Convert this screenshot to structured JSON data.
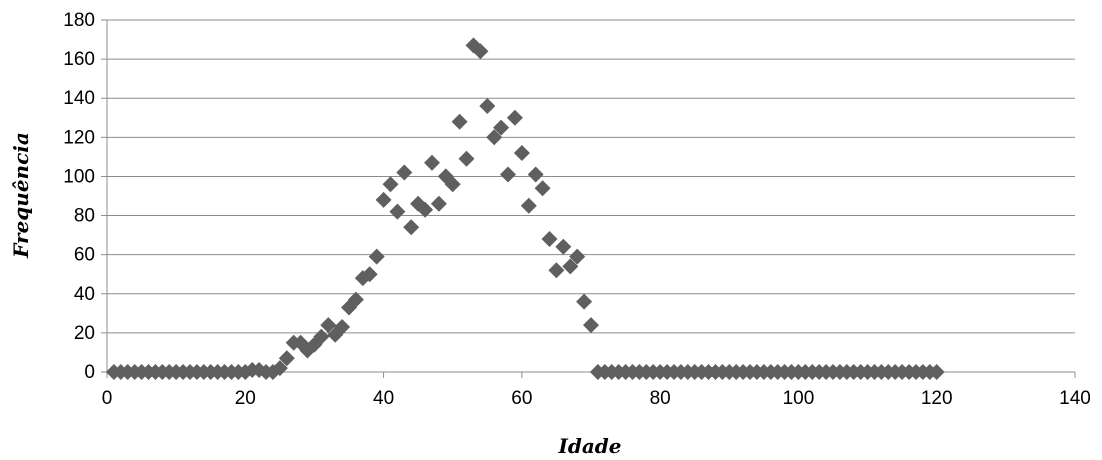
{
  "chart_data": {
    "type": "scatter",
    "title": "",
    "xlabel": "Idade",
    "ylabel": "Frequência",
    "xlim": [
      0,
      140
    ],
    "ylim": [
      0,
      180
    ],
    "xticks": [
      0,
      20,
      40,
      60,
      80,
      100,
      120,
      140
    ],
    "yticks": [
      0,
      20,
      40,
      60,
      80,
      100,
      120,
      140,
      160,
      180
    ],
    "grid": "horizontal",
    "legend": "none",
    "marker_color": "#5f5f5f",
    "series": [
      {
        "marker": "diamond",
        "x": [
          1,
          2,
          3,
          4,
          5,
          6,
          7,
          8,
          9,
          10,
          11,
          12,
          13,
          14,
          15,
          16,
          17,
          18,
          19,
          20,
          21,
          22,
          23,
          24,
          25,
          26,
          27,
          28,
          29,
          30,
          31,
          32,
          33,
          34,
          35,
          36,
          37,
          38,
          39,
          40,
          41,
          42,
          43,
          44,
          45,
          46,
          47,
          48,
          49,
          50,
          51,
          52,
          53,
          54,
          55,
          56,
          57,
          58,
          59,
          60,
          61,
          62,
          63,
          64,
          65,
          66,
          67,
          68,
          69,
          70,
          71,
          72,
          73,
          74,
          75,
          76,
          77,
          78,
          79,
          80,
          81,
          82,
          83,
          84,
          85,
          86,
          87,
          88,
          89,
          90,
          91,
          92,
          93,
          94,
          95,
          96,
          97,
          98,
          99,
          100,
          101,
          102,
          103,
          104,
          105,
          106,
          107,
          108,
          109,
          110,
          111,
          112,
          113,
          114,
          115,
          116,
          117,
          118,
          119,
          120
        ],
        "y": [
          0,
          0,
          0,
          0,
          0,
          0,
          0,
          0,
          0,
          0,
          0,
          0,
          0,
          0,
          0,
          0,
          0,
          0,
          0,
          0,
          1,
          1,
          0,
          0,
          2,
          7,
          15,
          15,
          11,
          14,
          18,
          24,
          19,
          23,
          33,
          37,
          48,
          50,
          59,
          88,
          96,
          82,
          102,
          74,
          86,
          83,
          107,
          86,
          100,
          96,
          128,
          109,
          167,
          164,
          136,
          120,
          125,
          101,
          130,
          112,
          85,
          101,
          94,
          68,
          52,
          64,
          54,
          59,
          36,
          24,
          0,
          0,
          0,
          0,
          0,
          0,
          0,
          0,
          0,
          0,
          0,
          0,
          0,
          0,
          0,
          0,
          0,
          0,
          0,
          0,
          0,
          0,
          0,
          0,
          0,
          0,
          0,
          0,
          0,
          0,
          0,
          0,
          0,
          0,
          0,
          0,
          0,
          0,
          0,
          0,
          0,
          0,
          0,
          0,
          0,
          0,
          0,
          0,
          0,
          0
        ]
      }
    ]
  }
}
